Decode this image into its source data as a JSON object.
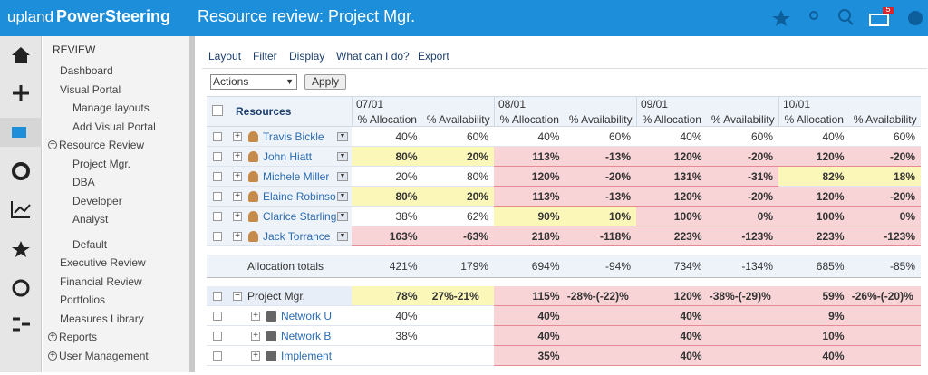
{
  "header": {
    "brand_prefix": "upland",
    "brand": "PowerSteering",
    "title": "Resource review: Project Mgr.",
    "badge": "5"
  },
  "sidebar": {
    "section": "REVIEW",
    "items": [
      {
        "label": "Dashboard",
        "level": 1
      },
      {
        "label": "Visual Portal",
        "level": 1
      },
      {
        "label": "Manage layouts",
        "level": 2
      },
      {
        "label": "Add Visual Portal",
        "level": 2
      },
      {
        "label": "Resource Review",
        "level": 0,
        "toggle": "expanded"
      },
      {
        "label": "Project Mgr.",
        "level": 2
      },
      {
        "label": "DBA",
        "level": 2
      },
      {
        "label": "Developer",
        "level": 2
      },
      {
        "label": "Analyst",
        "level": 2
      },
      {
        "label": "Default",
        "level": 2,
        "gap": true
      },
      {
        "label": "Executive Review",
        "level": 1
      },
      {
        "label": "Financial Review",
        "level": 1
      },
      {
        "label": "Portfolios",
        "level": 1
      },
      {
        "label": "Measures Library",
        "level": 1
      },
      {
        "label": "Reports",
        "level": 0,
        "toggle": "collapsed"
      },
      {
        "label": "User Management",
        "level": 0,
        "toggle": "collapsed"
      }
    ]
  },
  "toolbar": {
    "menu": [
      "Layout",
      "Filter",
      "Display",
      "What can I do?",
      "Export"
    ],
    "select": "Actions",
    "button": "Apply"
  },
  "table": {
    "resources_header": "Resources",
    "periods": [
      "07/01",
      "08/01",
      "09/01",
      "10/01"
    ],
    "columns": [
      "% Allocation",
      "% Availability"
    ],
    "status_colors": {
      "normal": "#ffffff",
      "warning": "#fbf7b8",
      "over": "#f9d4d7"
    },
    "rows": [
      {
        "name": "Travis Bickle",
        "cells": [
          "40%",
          "60%",
          "40%",
          "60%",
          "40%",
          "60%",
          "40%",
          "60%"
        ],
        "status": [
          "normal",
          "normal",
          "normal",
          "normal"
        ]
      },
      {
        "name": "John Hiatt",
        "cells": [
          "80%",
          "20%",
          "113%",
          "-13%",
          "120%",
          "-20%",
          "120%",
          "-20%"
        ],
        "status": [
          "warning",
          "over",
          "over",
          "over"
        ]
      },
      {
        "name": "Michele Miller",
        "cells": [
          "20%",
          "80%",
          "120%",
          "-20%",
          "131%",
          "-31%",
          "82%",
          "18%"
        ],
        "status": [
          "normal",
          "over",
          "over",
          "warning"
        ]
      },
      {
        "name": "Elaine Robinso",
        "cells": [
          "80%",
          "20%",
          "113%",
          "-13%",
          "120%",
          "-20%",
          "120%",
          "-20%"
        ],
        "status": [
          "warning",
          "over",
          "over",
          "over"
        ]
      },
      {
        "name": "Clarice Starling",
        "cells": [
          "38%",
          "62%",
          "90%",
          "10%",
          "100%",
          "0%",
          "100%",
          "0%"
        ],
        "status": [
          "normal",
          "warning",
          "over",
          "over"
        ]
      },
      {
        "name": "Jack Torrance",
        "cells": [
          "163%",
          "-63%",
          "218%",
          "-118%",
          "223%",
          "-123%",
          "223%",
          "-123%"
        ],
        "status": [
          "over",
          "over",
          "over",
          "over"
        ]
      }
    ],
    "totals": {
      "label": "Allocation totals",
      "cells": [
        "421%",
        "179%",
        "694%",
        "-94%",
        "734%",
        "-134%",
        "685%",
        "-85%"
      ]
    },
    "projects": [
      {
        "name": "Project Mgr.",
        "level": 0,
        "cells": [
          "78%",
          "27%-21%",
          "115%",
          "-28%-(-22)%",
          "120%",
          "-38%-(-29)%",
          "59%",
          "-26%-(-20)%"
        ],
        "status": [
          "warning",
          "over",
          "over",
          "over"
        ]
      },
      {
        "name": "Network U",
        "level": 1,
        "cells": [
          "40%",
          null,
          "40%",
          null,
          "40%",
          null,
          "9%",
          null
        ],
        "status": [
          "normal",
          "over",
          "over",
          "over"
        ]
      },
      {
        "name": "Network B",
        "level": 1,
        "cells": [
          "38%",
          null,
          "40%",
          null,
          "40%",
          null,
          "10%",
          null
        ],
        "status": [
          "normal",
          "over",
          "over",
          "over"
        ]
      },
      {
        "name": "Implement",
        "level": 1,
        "cells": [
          null,
          null,
          "35%",
          null,
          "40%",
          null,
          "40%",
          null
        ],
        "status": [
          "normal",
          "over",
          "over",
          "over"
        ]
      }
    ]
  }
}
